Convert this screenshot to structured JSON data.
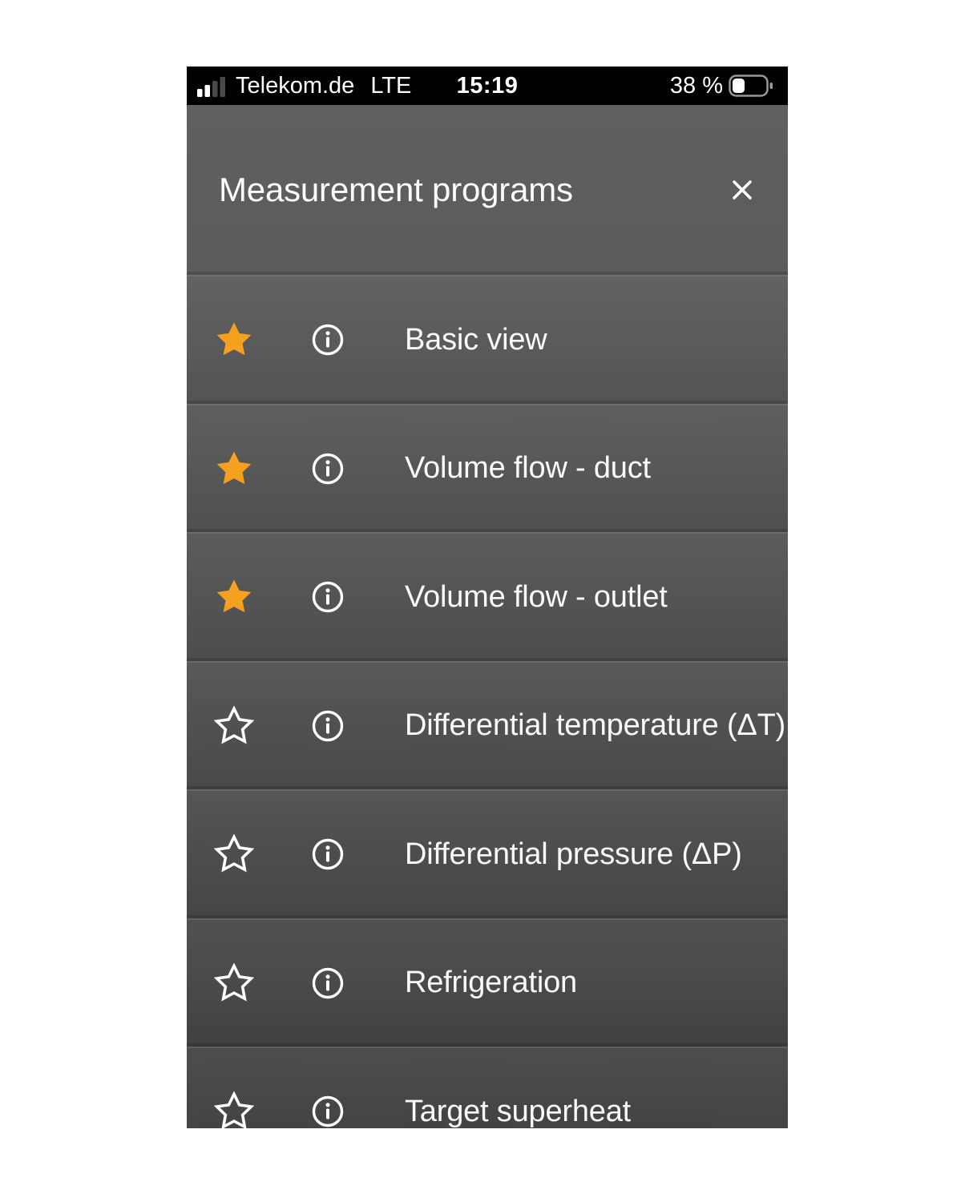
{
  "status_bar": {
    "carrier": "Telekom.de",
    "network": "LTE",
    "time": "15:19",
    "battery_label": "38 %",
    "battery_percent": 38
  },
  "header": {
    "title": "Measurement programs"
  },
  "list": {
    "items": [
      {
        "label": "Basic view",
        "favorite": true
      },
      {
        "label": "Volume flow - duct",
        "favorite": true
      },
      {
        "label": "Volume flow - outlet",
        "favorite": true
      },
      {
        "label": "Differential temperature (ΔT)",
        "favorite": false
      },
      {
        "label": "Differential pressure (ΔP)",
        "favorite": false
      },
      {
        "label": "Refrigeration",
        "favorite": false
      },
      {
        "label": "Target superheat",
        "favorite": false
      }
    ]
  },
  "colors": {
    "favorite_star": "#F5A01E",
    "sheet_top": "#616161",
    "sheet_bottom": "#424242",
    "status_bar_bg": "#000000"
  }
}
